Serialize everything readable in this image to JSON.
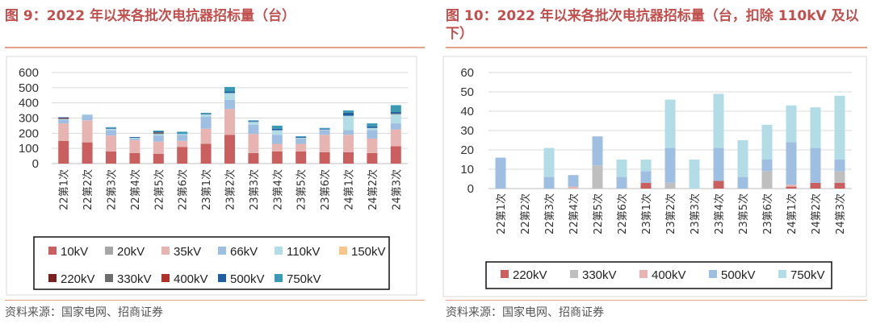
{
  "left_figure": {
    "title": "图 9：2022 年以来各批次电抗器招标量（台）",
    "source": "资料来源：国家电网、招商证券"
  },
  "right_figure": {
    "title": "图 10：2022 年以来各批次电抗器招标量（台，扣除 110kV 及以下）",
    "source": "资料来源：国家电网、招商证券"
  },
  "chart_data": [
    {
      "type": "bar",
      "stacked": true,
      "title": "图 9：2022 年以来各批次电抗器招标量（台）",
      "categories": [
        "22第1次",
        "22第2次",
        "22第3次",
        "22第4次",
        "22第5次",
        "22第6次",
        "23第1次",
        "23第2次",
        "23第3次",
        "23第4次",
        "23第5次",
        "23第6次",
        "24第1次",
        "24第2次",
        "24第3次"
      ],
      "ylim": [
        0,
        600
      ],
      "yticks": [
        0,
        100,
        200,
        300,
        400,
        500,
        600
      ],
      "legend_position": "bottom",
      "series": [
        {
          "name": "10kV",
          "color": "#c9605f",
          "values": [
            150,
            140,
            80,
            70,
            65,
            110,
            130,
            190,
            70,
            80,
            80,
            75,
            75,
            70,
            115
          ]
        },
        {
          "name": "20kV",
          "color": "#a6a6a6",
          "values": [
            0,
            0,
            0,
            0,
            0,
            0,
            0,
            0,
            0,
            0,
            0,
            0,
            0,
            0,
            0
          ]
        },
        {
          "name": "35kV",
          "color": "#e8b4b1",
          "values": [
            115,
            145,
            105,
            85,
            80,
            40,
            100,
            170,
            125,
            50,
            50,
            115,
            115,
            95,
            110
          ]
        },
        {
          "name": "66kV",
          "color": "#9fbfe2",
          "values": [
            25,
            35,
            35,
            10,
            40,
            40,
            80,
            60,
            60,
            60,
            35,
            30,
            30,
            55,
            40
          ]
        },
        {
          "name": "110kV",
          "color": "#b3dde6",
          "values": [
            5,
            5,
            10,
            5,
            10,
            5,
            15,
            45,
            20,
            30,
            5,
            5,
            95,
            15,
            60
          ]
        },
        {
          "name": "150kV",
          "color": "#f6c68d",
          "values": [
            0,
            0,
            0,
            0,
            0,
            0,
            0,
            0,
            0,
            0,
            0,
            0,
            0,
            0,
            0
          ]
        },
        {
          "name": "220kV",
          "color": "#7a1f1f",
          "values": [
            5,
            0,
            0,
            0,
            0,
            0,
            0,
            0,
            0,
            0,
            0,
            0,
            0,
            0,
            0
          ]
        },
        {
          "name": "330kV",
          "color": "#6d6d6d",
          "values": [
            0,
            0,
            0,
            0,
            12,
            0,
            0,
            0,
            0,
            0,
            0,
            0,
            0,
            0,
            5
          ]
        },
        {
          "name": "400kV",
          "color": "#b0302a",
          "values": [
            0,
            0,
            0,
            0,
            0,
            0,
            0,
            0,
            0,
            0,
            0,
            0,
            0,
            0,
            0
          ]
        },
        {
          "name": "500kV",
          "color": "#1f5fa0",
          "values": [
            5,
            0,
            5,
            5,
            5,
            0,
            5,
            10,
            5,
            10,
            5,
            5,
            20,
            10,
            10
          ]
        },
        {
          "name": "750kV",
          "color": "#3a9ab3",
          "values": [
            0,
            0,
            5,
            0,
            5,
            15,
            5,
            30,
            5,
            20,
            5,
            5,
            15,
            20,
            45
          ]
        }
      ]
    },
    {
      "type": "bar",
      "stacked": true,
      "title": "图 10：2022 年以来各批次电抗器招标量（台，扣除 110kV 及以下）",
      "categories": [
        "22第1次",
        "22第2次",
        "22第3次",
        "22第4次",
        "22第5次",
        "22第6次",
        "23第1次",
        "23第2次",
        "23第3次",
        "23第4次",
        "23第5次",
        "23第6次",
        "24第1次",
        "24第2次",
        "24第3次"
      ],
      "ylim": [
        0,
        60
      ],
      "yticks": [
        0,
        10,
        20,
        30,
        40,
        50,
        60
      ],
      "legend_position": "bottom",
      "series": [
        {
          "name": "220kV",
          "color": "#c9605f",
          "values": [
            0,
            0,
            0,
            0,
            0,
            0,
            3,
            0,
            0,
            4,
            0,
            0,
            1,
            3,
            3
          ]
        },
        {
          "name": "330kV",
          "color": "#bfbfbf",
          "values": [
            0,
            0,
            0,
            0,
            12,
            0,
            0,
            3,
            0,
            0,
            0,
            9,
            0,
            0,
            6
          ]
        },
        {
          "name": "400kV",
          "color": "#e8b4b1",
          "values": [
            0,
            0,
            0,
            1,
            0,
            0,
            0,
            0,
            0,
            0,
            0,
            0,
            1,
            0,
            0
          ]
        },
        {
          "name": "500kV",
          "color": "#9fbfe2",
          "values": [
            16,
            0,
            6,
            6,
            15,
            6,
            6,
            18,
            0,
            17,
            6,
            6,
            22,
            18,
            6
          ]
        },
        {
          "name": "750kV",
          "color": "#b3dde6",
          "values": [
            0,
            0,
            15,
            0,
            0,
            9,
            6,
            25,
            15,
            28,
            19,
            18,
            19,
            21,
            33
          ]
        }
      ]
    }
  ]
}
